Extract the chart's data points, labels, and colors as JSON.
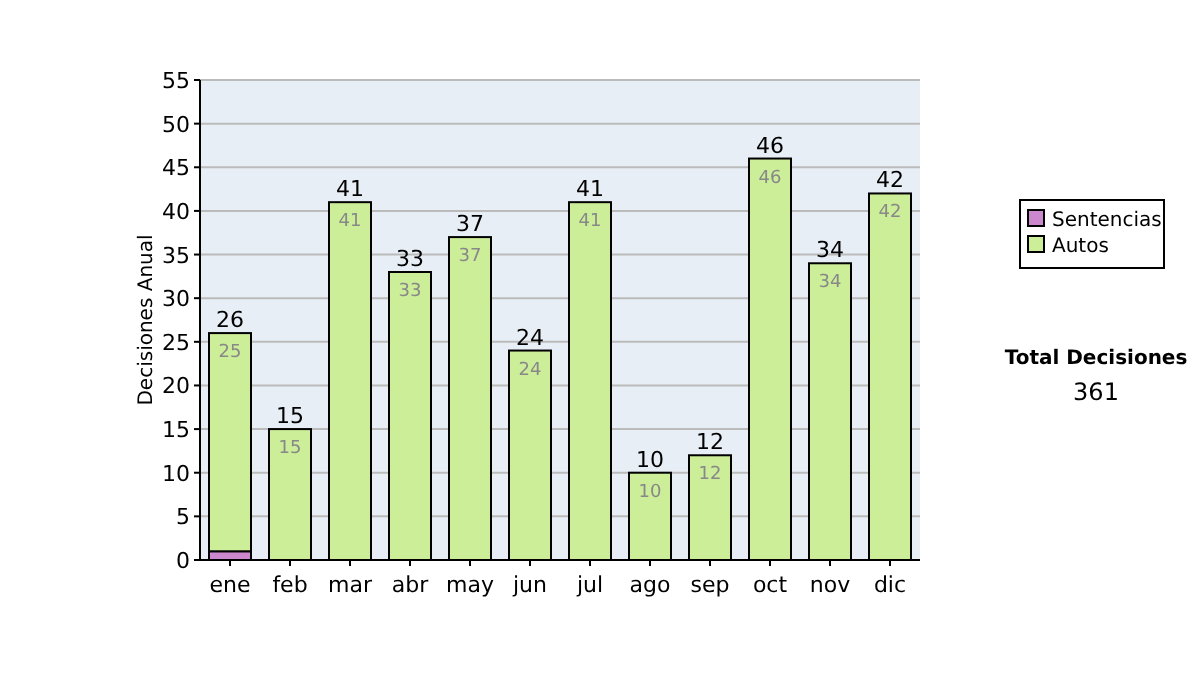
{
  "chart_data": {
    "type": "bar",
    "stacked": true,
    "ylabel": "Decisiones Anual",
    "categories": [
      "ene",
      "feb",
      "mar",
      "abr",
      "may",
      "jun",
      "jul",
      "ago",
      "sep",
      "oct",
      "nov",
      "dic"
    ],
    "series": [
      {
        "name": "Sentencias",
        "color": "#cc88cc",
        "values": [
          1,
          0,
          0,
          0,
          0,
          0,
          0,
          0,
          0,
          0,
          0,
          0
        ]
      },
      {
        "name": "Autos",
        "color": "#ccee99",
        "values": [
          25,
          15,
          41,
          33,
          37,
          24,
          41,
          10,
          12,
          46,
          34,
          42
        ],
        "value_labels": [
          "25",
          "15",
          "41",
          "33",
          "37",
          "24",
          "41",
          "10",
          "12",
          "46",
          "34",
          "42"
        ]
      }
    ],
    "totals": [
      "26",
      "15",
      "41",
      "33",
      "37",
      "24",
      "41",
      "10",
      "12",
      "46",
      "34",
      "42"
    ],
    "ylim": [
      0,
      55
    ],
    "yticks": [
      0,
      5,
      10,
      15,
      20,
      25,
      30,
      35,
      40,
      45,
      50,
      55
    ],
    "grid": "y",
    "legend": "right",
    "annotations": [
      "Total Decisiones",
      "361"
    ]
  }
}
